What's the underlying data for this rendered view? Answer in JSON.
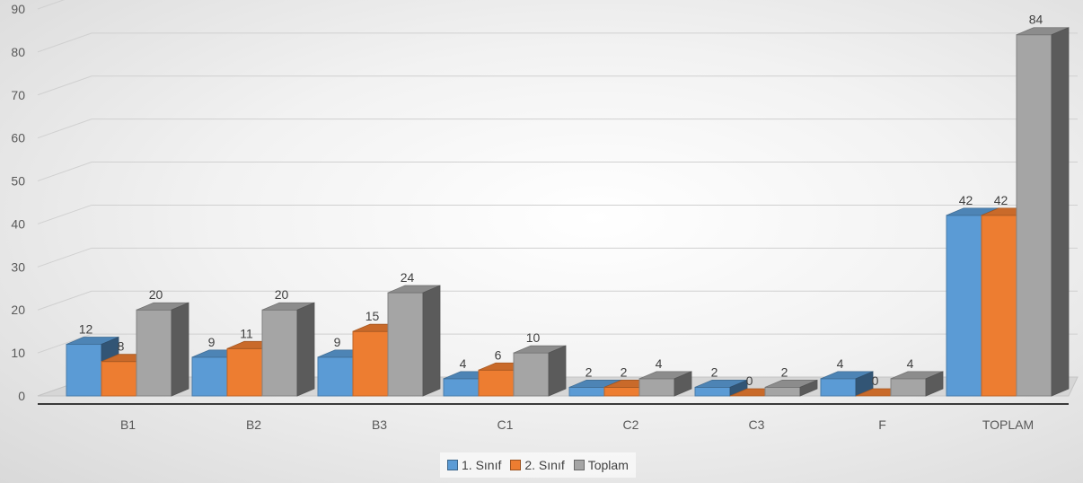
{
  "chart_data": {
    "type": "bar",
    "categories": [
      "B1",
      "B2",
      "B3",
      "C1",
      "C2",
      "C3",
      "F",
      "TOPLAM"
    ],
    "series": [
      {
        "name": "1. Sınıf",
        "color": "#5b9bd5",
        "values": [
          12,
          9,
          9,
          4,
          2,
          2,
          4,
          42
        ]
      },
      {
        "name": "2. Sınıf",
        "color": "#ed7d31",
        "values": [
          8,
          11,
          15,
          6,
          2,
          0,
          0,
          42
        ]
      },
      {
        "name": "Toplam",
        "color": "#a5a5a5",
        "values": [
          20,
          20,
          24,
          10,
          4,
          2,
          4,
          84
        ]
      }
    ],
    "ylim": [
      0,
      90
    ],
    "yticks": [
      0,
      10,
      20,
      30,
      40,
      50,
      60,
      70,
      80,
      90
    ],
    "grid": true,
    "legend_position": "bottom",
    "style": "3d-clustered-column"
  }
}
